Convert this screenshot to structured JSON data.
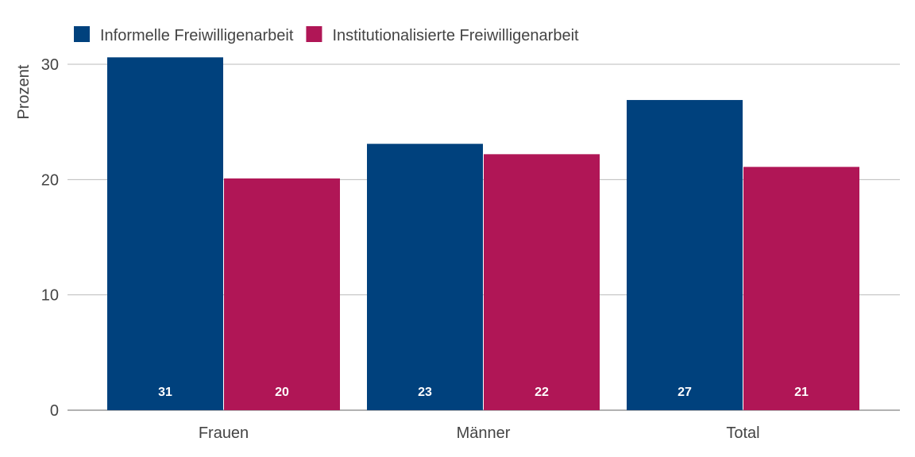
{
  "chart_data": {
    "type": "bar",
    "title": "",
    "xlabel": "",
    "ylabel": "Prozent",
    "ylim": [
      0,
      30
    ],
    "yticks": [
      "0",
      "10",
      "20",
      "30"
    ],
    "grid": true,
    "legend_position": "top-left",
    "categories": [
      "Frauen",
      "Männer",
      "Total"
    ],
    "series": [
      {
        "name": "Informelle Freiwilligenarbeit",
        "color": "#00417d",
        "values": [
          30.6,
          23.1,
          26.9
        ],
        "labels": [
          "31",
          "23",
          "27"
        ]
      },
      {
        "name": "Institutionalisierte Freiwilligenarbeit",
        "color": "#b01656",
        "values": [
          20.1,
          22.2,
          21.1
        ],
        "labels": [
          "20",
          "22",
          "21"
        ]
      }
    ]
  }
}
